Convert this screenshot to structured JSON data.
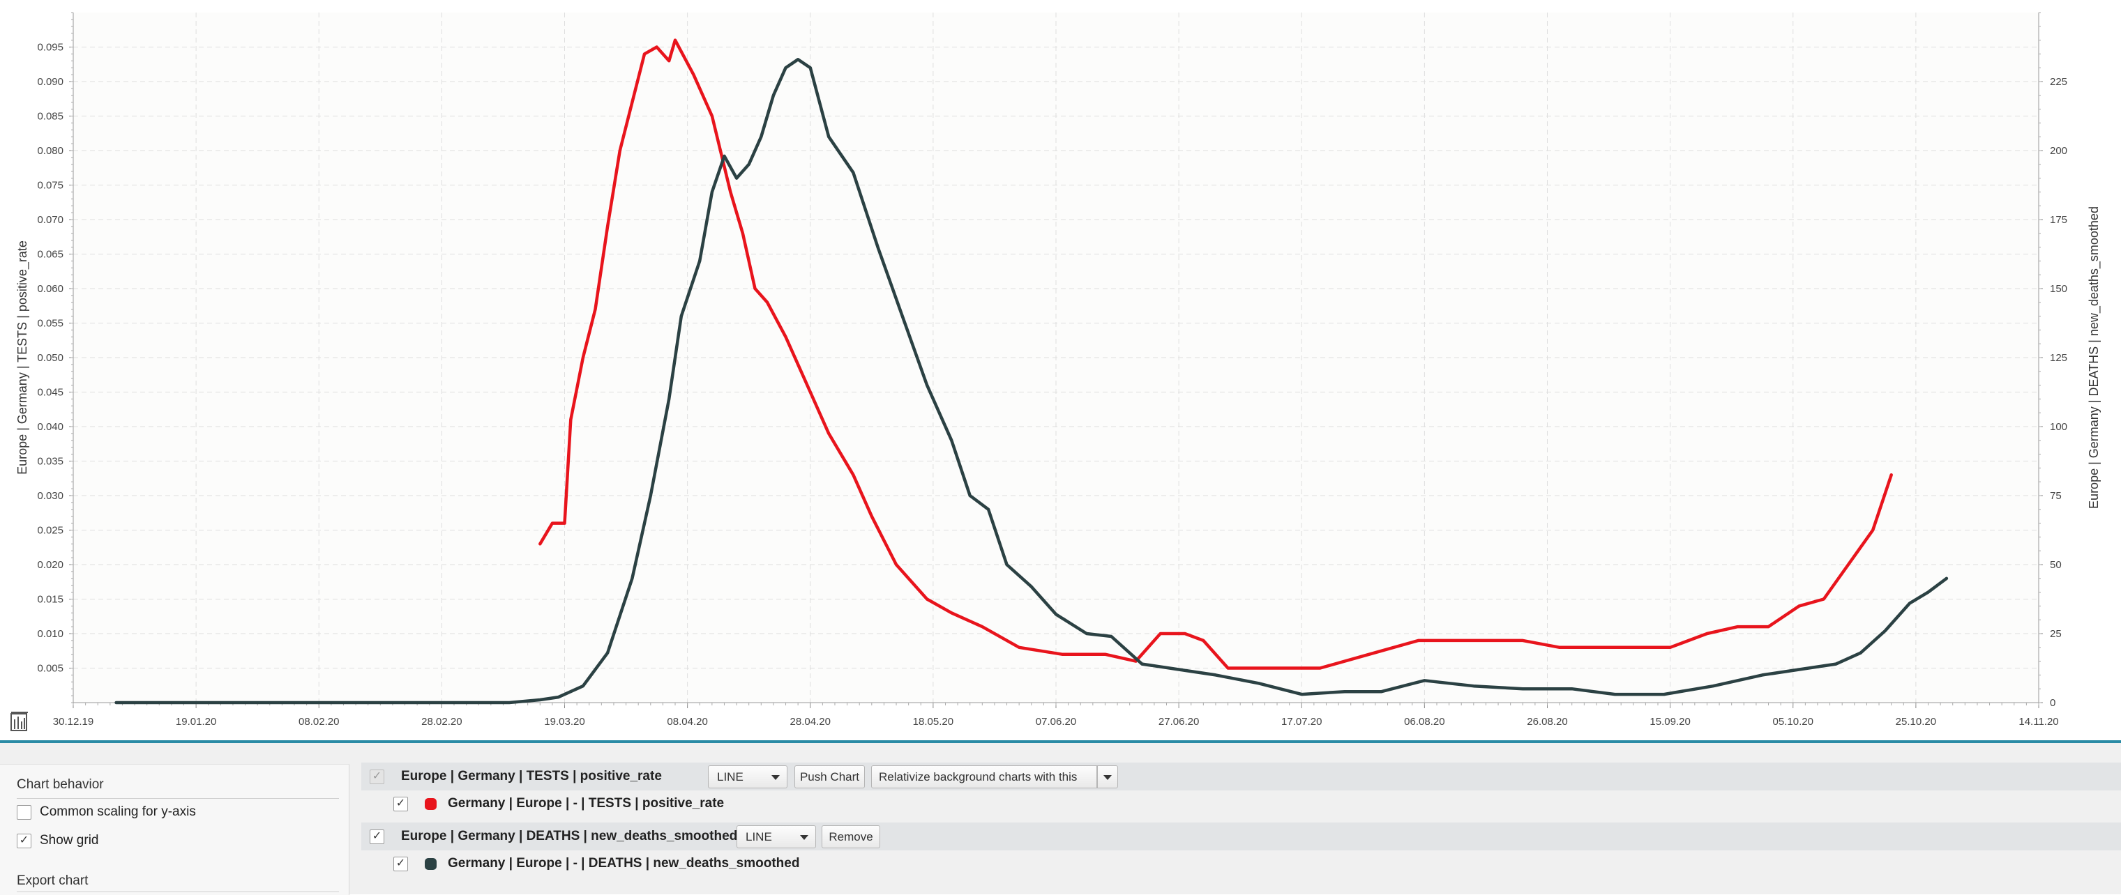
{
  "chart_data": {
    "type": "line",
    "grid": true,
    "x_ticks": [
      "30.12.19",
      "19.01.20",
      "08.02.20",
      "28.02.20",
      "19.03.20",
      "08.04.20",
      "28.04.20",
      "18.05.20",
      "07.06.20",
      "27.06.20",
      "17.07.20",
      "06.08.20",
      "26.08.20",
      "15.09.20",
      "05.10.20",
      "25.10.20",
      "14.11.20"
    ],
    "y_left_ticks": [
      "0.005",
      "0.010",
      "0.015",
      "0.020",
      "0.025",
      "0.030",
      "0.035",
      "0.040",
      "0.045",
      "0.050",
      "0.055",
      "0.060",
      "0.065",
      "0.070",
      "0.075",
      "0.080",
      "0.085",
      "0.090",
      "0.095"
    ],
    "y_right_ticks": [
      "0",
      "25",
      "50",
      "75",
      "100",
      "125",
      "150",
      "175",
      "200",
      "225"
    ],
    "ylim_left": [
      0,
      0.1
    ],
    "ylim_right": [
      0,
      250
    ],
    "ylabel_left": "Europe | Germany | TESTS | positive_rate",
    "ylabel_right": "Europe | Germany | DEATHS | new_deaths_smoothed",
    "series": [
      {
        "name": "Germany | Europe | - | TESTS | positive_rate",
        "axis": "left",
        "color": "#e8141c",
        "points": [
          [
            "2020-03-15",
            0.023
          ],
          [
            "2020-03-17",
            0.026
          ],
          [
            "2020-03-19",
            0.026
          ],
          [
            "2020-03-20",
            0.041
          ],
          [
            "2020-03-22",
            0.05
          ],
          [
            "2020-03-24",
            0.057
          ],
          [
            "2020-03-26",
            0.069
          ],
          [
            "2020-03-28",
            0.08
          ],
          [
            "2020-03-30",
            0.087
          ],
          [
            "2020-04-01",
            0.094
          ],
          [
            "2020-04-03",
            0.095
          ],
          [
            "2020-04-05",
            0.093
          ],
          [
            "2020-04-06",
            0.096
          ],
          [
            "2020-04-09",
            0.091
          ],
          [
            "2020-04-12",
            0.085
          ],
          [
            "2020-04-15",
            0.074
          ],
          [
            "2020-04-17",
            0.068
          ],
          [
            "2020-04-19",
            0.06
          ],
          [
            "2020-04-21",
            0.058
          ],
          [
            "2020-04-24",
            0.053
          ],
          [
            "2020-04-28",
            0.045
          ],
          [
            "2020-05-01",
            0.039
          ],
          [
            "2020-05-05",
            0.033
          ],
          [
            "2020-05-08",
            0.027
          ],
          [
            "2020-05-12",
            0.02
          ],
          [
            "2020-05-17",
            0.015
          ],
          [
            "2020-05-21",
            0.013
          ],
          [
            "2020-05-26",
            0.011
          ],
          [
            "2020-06-01",
            0.008
          ],
          [
            "2020-06-08",
            0.007
          ],
          [
            "2020-06-15",
            0.007
          ],
          [
            "2020-06-20",
            0.006
          ],
          [
            "2020-06-24",
            0.01
          ],
          [
            "2020-06-28",
            0.01
          ],
          [
            "2020-07-01",
            0.009
          ],
          [
            "2020-07-05",
            0.005
          ],
          [
            "2020-07-10",
            0.005
          ],
          [
            "2020-07-20",
            0.005
          ],
          [
            "2020-07-28",
            0.007
          ],
          [
            "2020-08-05",
            0.009
          ],
          [
            "2020-08-15",
            0.009
          ],
          [
            "2020-08-22",
            0.009
          ],
          [
            "2020-08-28",
            0.008
          ],
          [
            "2020-09-02",
            0.008
          ],
          [
            "2020-09-08",
            0.008
          ],
          [
            "2020-09-15",
            0.008
          ],
          [
            "2020-09-21",
            0.01
          ],
          [
            "2020-09-26",
            0.011
          ],
          [
            "2020-10-01",
            0.011
          ],
          [
            "2020-10-06",
            0.014
          ],
          [
            "2020-10-10",
            0.015
          ],
          [
            "2020-10-14",
            0.02
          ],
          [
            "2020-10-18",
            0.025
          ],
          [
            "2020-10-21",
            0.033
          ]
        ]
      },
      {
        "name": "Germany | Europe | - | DEATHS | new_deaths_smoothed",
        "axis": "right",
        "color": "#2b4143",
        "points": [
          [
            "2020-01-06",
            0
          ],
          [
            "2020-03-10",
            0
          ],
          [
            "2020-03-15",
            1
          ],
          [
            "2020-03-18",
            2
          ],
          [
            "2020-03-22",
            6
          ],
          [
            "2020-03-26",
            18
          ],
          [
            "2020-03-30",
            45
          ],
          [
            "2020-04-02",
            75
          ],
          [
            "2020-04-05",
            110
          ],
          [
            "2020-04-07",
            140
          ],
          [
            "2020-04-10",
            160
          ],
          [
            "2020-04-12",
            185
          ],
          [
            "2020-04-14",
            198
          ],
          [
            "2020-04-16",
            190
          ],
          [
            "2020-04-18",
            195
          ],
          [
            "2020-04-20",
            205
          ],
          [
            "2020-04-22",
            220
          ],
          [
            "2020-04-24",
            230
          ],
          [
            "2020-04-26",
            233
          ],
          [
            "2020-04-28",
            230
          ],
          [
            "2020-05-01",
            205
          ],
          [
            "2020-05-05",
            192
          ],
          [
            "2020-05-09",
            165
          ],
          [
            "2020-05-13",
            140
          ],
          [
            "2020-05-17",
            115
          ],
          [
            "2020-05-21",
            95
          ],
          [
            "2020-05-24",
            75
          ],
          [
            "2020-05-27",
            70
          ],
          [
            "2020-05-30",
            50
          ],
          [
            "2020-06-03",
            42
          ],
          [
            "2020-06-07",
            32
          ],
          [
            "2020-06-12",
            25
          ],
          [
            "2020-06-16",
            24
          ],
          [
            "2020-06-21",
            14
          ],
          [
            "2020-06-27",
            12
          ],
          [
            "2020-07-03",
            10
          ],
          [
            "2020-07-10",
            7
          ],
          [
            "2020-07-17",
            3
          ],
          [
            "2020-07-24",
            4
          ],
          [
            "2020-07-30",
            4
          ],
          [
            "2020-08-06",
            8
          ],
          [
            "2020-08-14",
            6
          ],
          [
            "2020-08-22",
            5
          ],
          [
            "2020-08-30",
            5
          ],
          [
            "2020-09-06",
            3
          ],
          [
            "2020-09-14",
            3
          ],
          [
            "2020-09-22",
            6
          ],
          [
            "2020-09-30",
            10
          ],
          [
            "2020-10-06",
            12
          ],
          [
            "2020-10-12",
            14
          ],
          [
            "2020-10-16",
            18
          ],
          [
            "2020-10-20",
            26
          ],
          [
            "2020-10-24",
            36
          ],
          [
            "2020-10-27",
            40
          ],
          [
            "2020-10-30",
            45
          ]
        ]
      }
    ]
  },
  "chart_behavior": {
    "title": "Chart behavior",
    "common_scaling_label": "Common scaling for y-axis",
    "common_scaling_checked": false,
    "show_grid_label": "Show grid",
    "show_grid_checked": true,
    "export_label": "Export chart"
  },
  "groups": [
    {
      "title": "Europe | Germany | TESTS | positive_rate",
      "type": "LINE",
      "button1": "Push Chart",
      "button2": "Relativize background charts with this",
      "series_label": "Germany | Europe | - | TESTS | positive_rate",
      "series_color": "#e8141c"
    },
    {
      "title": "Europe | Germany | DEATHS | new_deaths_smoothed",
      "type": "LINE",
      "button1": "Remove",
      "series_label": "Germany | Europe | - | DEATHS | new_deaths_smoothed",
      "series_color": "#2b4143"
    }
  ],
  "check_mark": "✓",
  "icons": {
    "chart_settings": "chart-settings-icon"
  }
}
